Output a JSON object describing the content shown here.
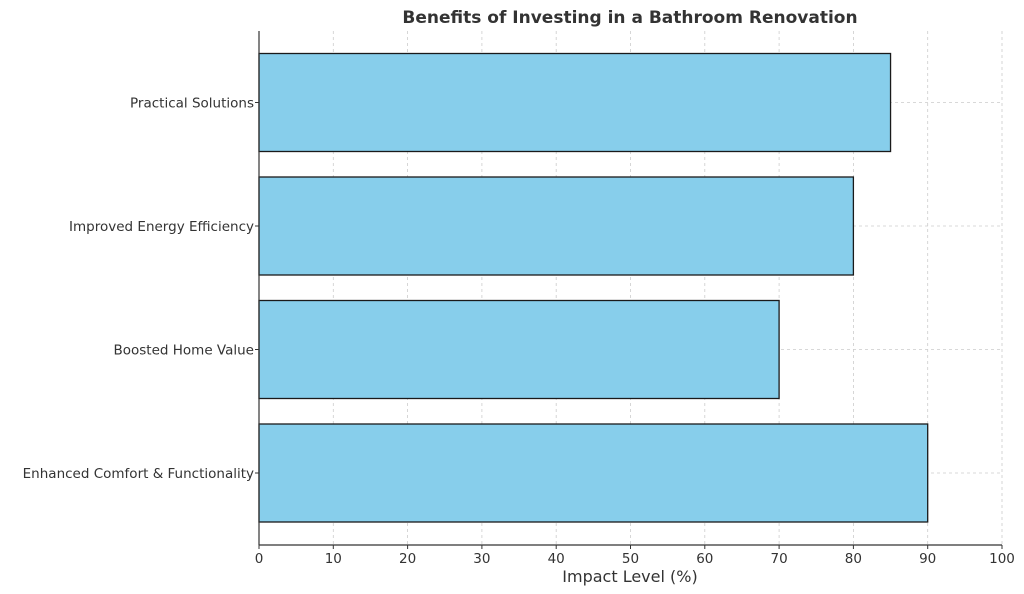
{
  "colors": {
    "bar_fill": "#87ceeb",
    "bar_edge": "#1a1a1a",
    "text": "#333333",
    "grid": "#cccccc"
  },
  "chart_data": {
    "type": "bar",
    "orientation": "horizontal",
    "title": "Benefits of Investing in a Bathroom Renovation",
    "xlabel": "Impact Level (%)",
    "ylabel": "",
    "categories": [
      "Enhanced Comfort & Functionality",
      "Boosted Home Value",
      "Improved Energy Efficiency",
      "Practical Solutions"
    ],
    "values": [
      90,
      70,
      80,
      85
    ],
    "xlim": [
      0,
      100
    ],
    "xticks": [
      "0",
      "10",
      "20",
      "30",
      "40",
      "50",
      "60",
      "70",
      "80",
      "90",
      "100"
    ],
    "grid": true
  }
}
